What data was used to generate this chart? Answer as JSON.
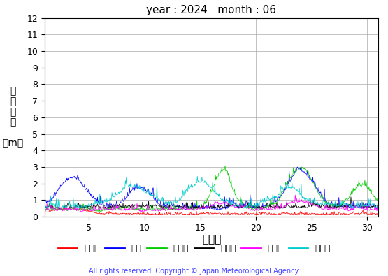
{
  "title": "year : 2024   month : 06",
  "xlabel": "（日）",
  "ylabel_chars": [
    "有",
    "義",
    "波",
    "高",
    "",
    "（m）"
  ],
  "ylim": [
    0,
    12
  ],
  "yticks": [
    0,
    1,
    2,
    3,
    4,
    5,
    6,
    7,
    8,
    9,
    10,
    11,
    12
  ],
  "xticks": [
    5,
    10,
    15,
    20,
    25,
    30
  ],
  "xlim": [
    1,
    31
  ],
  "days_in_month": 30,
  "obs_per_day": 24,
  "copyright": "All rights reserved. Copyright © Japan Meteorological Agency",
  "series": [
    {
      "label": "上ノ国",
      "color": "#ff0000"
    },
    {
      "label": "唐桑",
      "color": "#0000ff"
    },
    {
      "label": "石廀崎",
      "color": "#00cc00"
    },
    {
      "label": "経ヶ崎",
      "color": "#000000"
    },
    {
      "label": "生月島",
      "color": "#ff00ff"
    },
    {
      "label": "屋久島",
      "color": "#00cccc"
    }
  ],
  "background_color": "#ffffff",
  "grid_color": "#aaaaaa",
  "title_fontsize": 11,
  "tick_fontsize": 9,
  "xlabel_fontsize": 11,
  "ylabel_fontsize": 10,
  "copyright_fontsize": 7,
  "copyright_color": "#4444ff",
  "linewidth": 0.5
}
